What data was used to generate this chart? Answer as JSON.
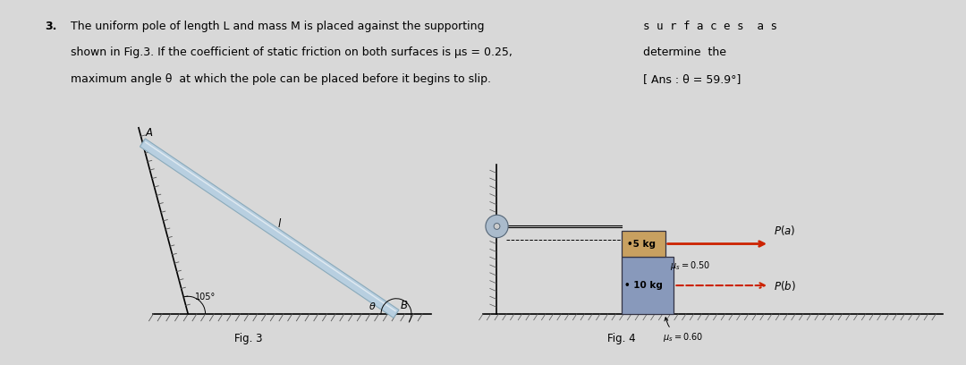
{
  "bg_color": "#d8d8d8",
  "problem_number": "3.",
  "line1": "The uniform pole of length L and mass M is placed against the supporting",
  "line2": "shown in Fig.3. If the coefficient of static friction on both surfaces is μs = 0.25,",
  "line3": "maximum angle θ  at which the pole can be placed before it begins to slip.",
  "right1": "s u r f a c e s  a s",
  "right2": "determine  the",
  "right3": "[ Ans : θ = 59.9°]",
  "fig3_caption": "Fig. 3",
  "fig4_caption": "Fig. 4",
  "pole_color": "#b8cfe0",
  "pole_edge": "#8aaabb",
  "pole_highlight": "#ddeeff",
  "wall_hatch_color": "#555555",
  "top_block_color": "#c8a060",
  "bot_block_color": "#8899bb",
  "wheel_color": "#aabbcc",
  "arrow_red": "#cc2200",
  "text_fs": 9.0,
  "label_fs": 8.5
}
